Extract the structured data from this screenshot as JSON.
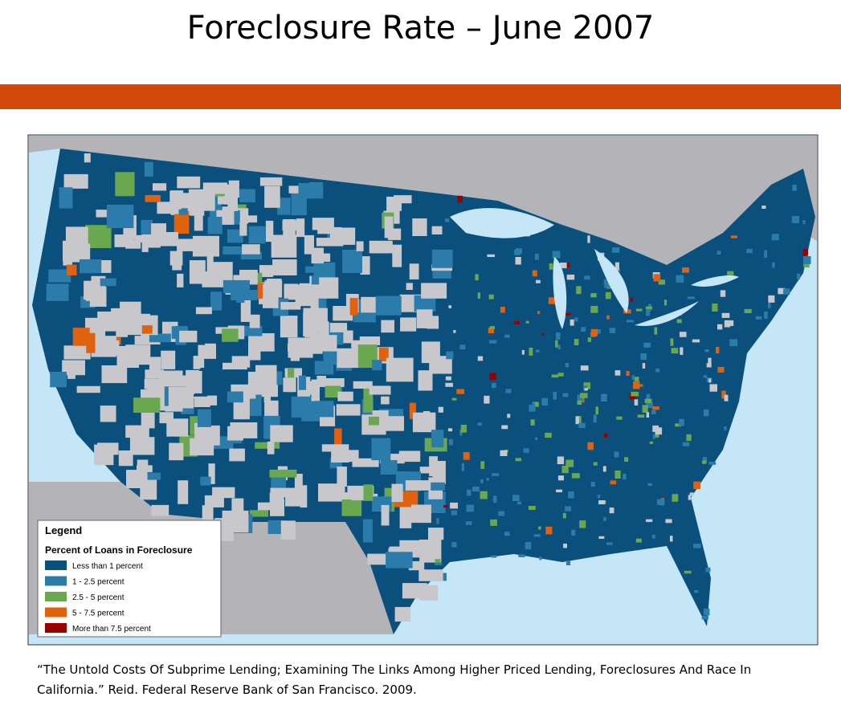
{
  "title": "Foreclosure Rate – June 2007",
  "legend": {
    "title": "Legend",
    "subtitle": "Percent of Loans in Foreclosure",
    "items": [
      {
        "label": "Less than 1 percent",
        "color": "#0b4f7c"
      },
      {
        "label": "1 - 2.5 percent",
        "color": "#2b7bab"
      },
      {
        "label": "2.5 - 5 percent",
        "color": "#6aa84f"
      },
      {
        "label": "5 - 7.5 percent",
        "color": "#e0620f"
      },
      {
        "label": "More than 7.5 percent",
        "color": "#990000"
      }
    ]
  },
  "citation": "“The Untold Costs Of Subprime Lending; Examining The Links Among Higher Priced Lending, Foreclosures And Race In California.” Reid. Federal Reserve Bank of San Francisco. 2009."
}
